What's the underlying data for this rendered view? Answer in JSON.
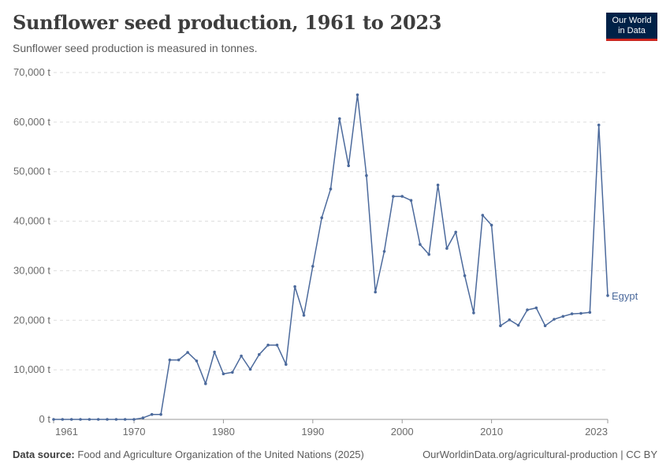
{
  "header": {
    "title": "Sunflower seed production, 1961 to 2023",
    "subtitle": "Sunflower seed production is measured in tonnes."
  },
  "logo": {
    "line1": "Our World",
    "line2": "in Data"
  },
  "footer": {
    "source_label": "Data source:",
    "source_text": "Food and Agriculture Organization of the United Nations (2025)",
    "right_text": "OurWorldinData.org/agricultural-production | CC BY"
  },
  "colors": {
    "line": "#4c6a9c",
    "grid": "#dddddd",
    "axis": "#999999"
  },
  "chart_data": {
    "type": "line",
    "title": "Sunflower seed production, 1961 to 2023",
    "xlabel": "",
    "ylabel": "",
    "xlim": [
      1961,
      2023
    ],
    "ylim": [
      0,
      70000
    ],
    "y_ticks": [
      0,
      10000,
      20000,
      30000,
      40000,
      50000,
      60000,
      70000
    ],
    "y_tick_labels": [
      "0 t",
      "10,000 t",
      "20,000 t",
      "30,000 t",
      "40,000 t",
      "50,000 t",
      "60,000 t",
      "70,000 t"
    ],
    "x_ticks": [
      1961,
      1970,
      1980,
      1990,
      2000,
      2010,
      2023
    ],
    "x_tick_labels": [
      "1961",
      "1970",
      "1980",
      "1990",
      "2000",
      "2010",
      "2023"
    ],
    "grid": "horizontal dashed",
    "series": [
      {
        "name": "Egypt",
        "x": [
          1961,
          1962,
          1963,
          1964,
          1965,
          1966,
          1967,
          1968,
          1969,
          1970,
          1971,
          1972,
          1973,
          1974,
          1975,
          1976,
          1977,
          1978,
          1979,
          1980,
          1981,
          1982,
          1983,
          1984,
          1985,
          1986,
          1987,
          1988,
          1989,
          1990,
          1991,
          1992,
          1993,
          1994,
          1995,
          1996,
          1997,
          1998,
          1999,
          2000,
          2001,
          2002,
          2003,
          2004,
          2005,
          2006,
          2007,
          2008,
          2009,
          2010,
          2011,
          2012,
          2013,
          2014,
          2015,
          2016,
          2017,
          2018,
          2019,
          2020,
          2021,
          2022,
          2023
        ],
        "values": [
          0,
          0,
          0,
          0,
          0,
          0,
          0,
          0,
          0,
          0,
          300,
          1000,
          1000,
          12000,
          12000,
          13500,
          11800,
          7200,
          13600,
          9200,
          9500,
          12800,
          10100,
          13100,
          15000,
          15000,
          11100,
          26800,
          21000,
          30900,
          40700,
          46500,
          60700,
          51200,
          65500,
          49200,
          25700,
          33900,
          45000,
          45000,
          44200,
          35300,
          33300,
          47300,
          34500,
          37800,
          29000,
          21500,
          41200,
          39200,
          18900,
          20100,
          19000,
          22100,
          22500,
          18900,
          20200,
          20800,
          21300,
          21400,
          21600,
          59400,
          25000
        ]
      }
    ]
  }
}
